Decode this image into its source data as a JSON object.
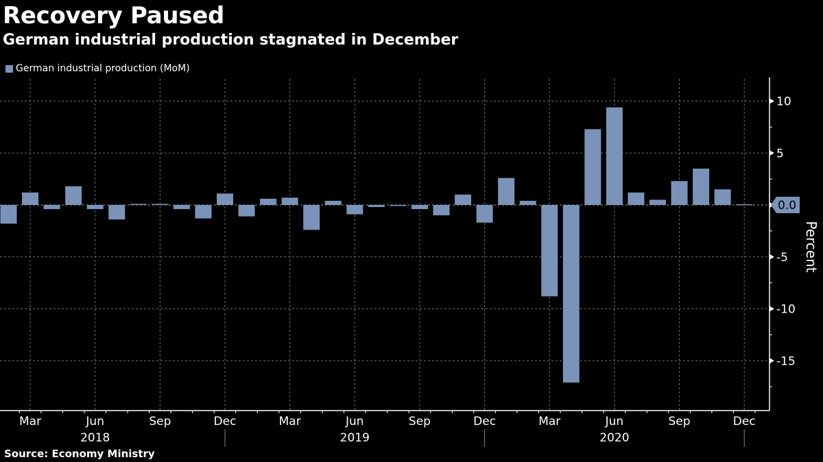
{
  "header": {
    "title": "Recovery Paused",
    "subtitle": "German industrial production stagnated in December"
  },
  "footer": {
    "source": "Source: Economy Ministry"
  },
  "colors": {
    "bar": "#7b93b8",
    "background": "#000000",
    "text": "#ffffff",
    "grid": "#6e6e6e"
  },
  "chart_data": {
    "type": "bar",
    "title": "Recovery Paused",
    "subtitle": "German industrial production stagnated in December",
    "xlabel": "",
    "ylabel": "Percent",
    "ylim": [
      -19.8,
      12.2
    ],
    "yticks": [
      10,
      5,
      0,
      -5,
      -10,
      -15
    ],
    "grid": true,
    "legend": {
      "position": "top-left",
      "entries": [
        "German industrial production (MoM)"
      ]
    },
    "last_value_label": "0.0",
    "x_tick_labels": [
      {
        "month": "Mar",
        "year": "2018"
      },
      {
        "month": "Jun",
        "year": "2018"
      },
      {
        "month": "Sep",
        "year": "2018"
      },
      {
        "month": "Dec",
        "year": "2018"
      },
      {
        "month": "Mar",
        "year": "2019"
      },
      {
        "month": "Jun",
        "year": "2019"
      },
      {
        "month": "Sep",
        "year": "2019"
      },
      {
        "month": "Dec",
        "year": "2019"
      },
      {
        "month": "Mar",
        "year": "2020"
      },
      {
        "month": "Jun",
        "year": "2020"
      },
      {
        "month": "Sep",
        "year": "2020"
      },
      {
        "month": "Dec",
        "year": "2020"
      }
    ],
    "year_labels": [
      "2018",
      "2019",
      "2020"
    ],
    "categories": [
      "2018-02",
      "2018-03",
      "2018-04",
      "2018-05",
      "2018-06",
      "2018-07",
      "2018-08",
      "2018-09",
      "2018-10",
      "2018-11",
      "2018-12",
      "2019-01",
      "2019-02",
      "2019-03",
      "2019-04",
      "2019-05",
      "2019-06",
      "2019-07",
      "2019-08",
      "2019-09",
      "2019-10",
      "2019-11",
      "2019-12",
      "2020-01",
      "2020-02",
      "2020-03",
      "2020-04",
      "2020-05",
      "2020-06",
      "2020-07",
      "2020-08",
      "2020-09",
      "2020-10",
      "2020-11",
      "2020-12"
    ],
    "series": [
      {
        "name": "German industrial production (MoM)",
        "values": [
          -1.8,
          1.2,
          -0.4,
          1.8,
          -0.4,
          -1.4,
          0.1,
          0.1,
          -0.4,
          -1.3,
          1.1,
          -1.1,
          0.6,
          0.7,
          -2.4,
          0.4,
          -0.9,
          -0.2,
          -0.1,
          -0.4,
          -1.0,
          1.0,
          -1.7,
          2.6,
          0.4,
          -8.8,
          -17.1,
          7.3,
          9.4,
          1.2,
          0.5,
          2.3,
          3.5,
          1.5,
          0.0
        ]
      }
    ]
  }
}
